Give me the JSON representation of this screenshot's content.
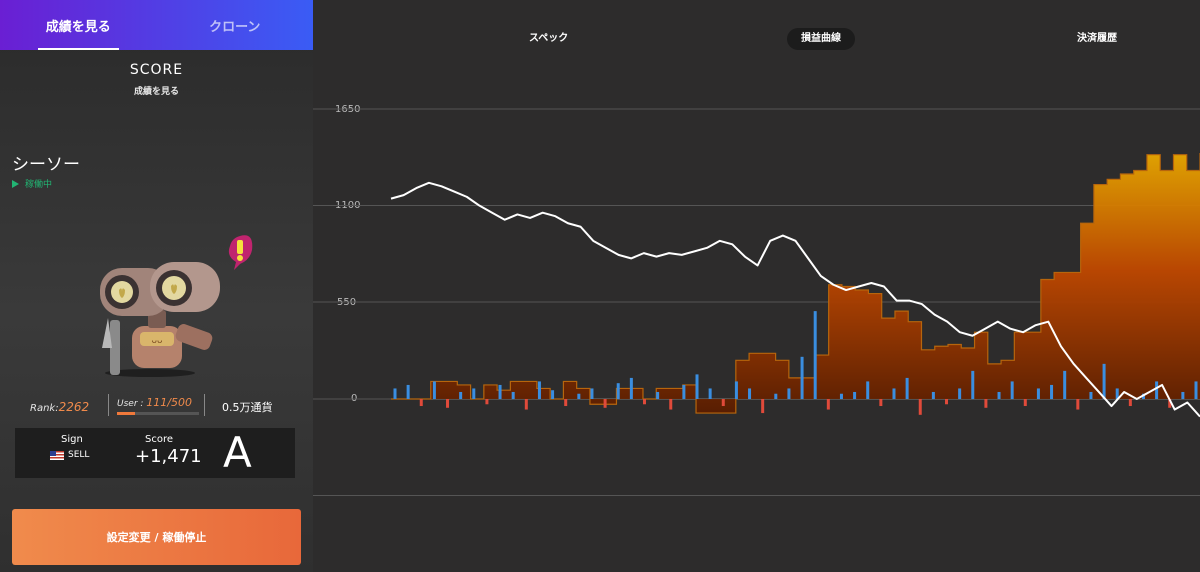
{
  "tabs": [
    "成績を見る",
    "クローン"
  ],
  "score_section": {
    "title": "SCORE",
    "subtitle": "成績を見る"
  },
  "bot": {
    "name": "シーソー",
    "status": "稼働中"
  },
  "stats": {
    "rank_label": "Rank:",
    "rank_value": "2262",
    "users_label": "User :",
    "users_value": "111/500",
    "users_fill": 0.222,
    "capital": "0.5万通貨"
  },
  "signal": {
    "sign_label": "Sign",
    "sign_value": "SELL",
    "score_label": "Score",
    "score_value": "+1,471",
    "grade": "A"
  },
  "action_button": "設定変更 / 稼働停止",
  "chart_tabs": [
    "スペック",
    "損益曲線",
    "決済履歴"
  ],
  "chart_data": {
    "type": "line",
    "y_ticks": [
      "1650",
      "1100",
      "550",
      "0"
    ],
    "ylim": [
      -550,
      1650
    ],
    "grid": true,
    "line_series": [
      1140,
      1160,
      1200,
      1230,
      1210,
      1180,
      1150,
      1100,
      1060,
      1020,
      1050,
      1030,
      1060,
      1040,
      1000,
      980,
      900,
      860,
      820,
      800,
      830,
      810,
      830,
      820,
      840,
      860,
      900,
      880,
      810,
      760,
      900,
      930,
      900,
      800,
      700,
      650,
      620,
      640,
      660,
      640,
      560,
      560,
      540,
      480,
      440,
      380,
      360,
      400,
      440,
      400,
      380,
      420,
      440,
      300,
      200,
      120,
      40,
      -40,
      40,
      0,
      40,
      80,
      -60,
      -20,
      -100
    ],
    "bar_series": [
      60,
      80,
      -40,
      100,
      -50,
      40,
      60,
      -30,
      80,
      40,
      -60,
      100,
      50,
      -40,
      30,
      60,
      -50,
      90,
      120,
      -30,
      40,
      -60,
      80,
      140,
      60,
      -40,
      100,
      60,
      -80,
      30,
      60,
      240,
      500,
      -60,
      30,
      40,
      100,
      -40,
      60,
      120,
      -90,
      40,
      -30,
      60,
      160,
      -50,
      40,
      100,
      -40,
      60,
      80,
      160,
      -60,
      40,
      200,
      60,
      -40,
      30,
      100,
      -50,
      40,
      100
    ],
    "area_series": [
      0,
      0,
      0,
      100,
      100,
      80,
      0,
      80,
      50,
      100,
      100,
      60,
      0,
      100,
      60,
      -30,
      -30,
      60,
      60,
      0,
      60,
      60,
      80,
      -80,
      -80,
      -80,
      220,
      260,
      260,
      220,
      120,
      120,
      250,
      650,
      640,
      620,
      600,
      460,
      500,
      440,
      280,
      300,
      310,
      290,
      380,
      200,
      220,
      380,
      380,
      680,
      720,
      720,
      1000,
      1220,
      1250,
      1280,
      1300,
      1390,
      1300,
      1390,
      1300,
      1400
    ]
  }
}
